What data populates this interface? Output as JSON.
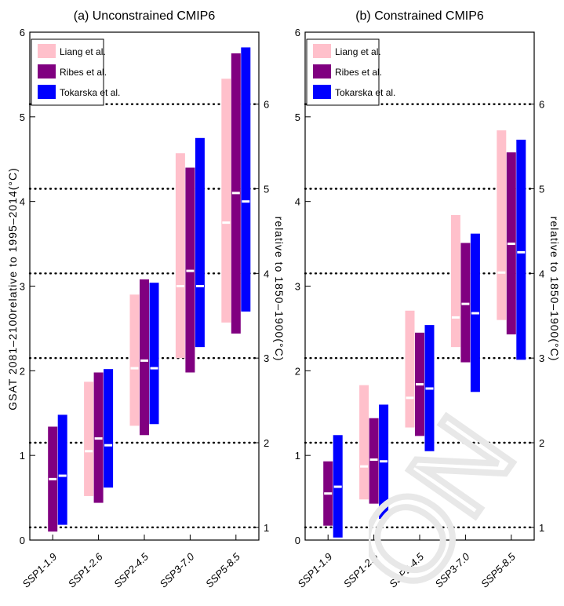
{
  "figure": {
    "ylabel_left": "GSAT 2081–2100relative to 1995–2014(°C)",
    "ylabel_right": "relative to 1850–1900(°C)",
    "watermark_text": "ON"
  },
  "chart_data": [
    {
      "type": "bar",
      "subtype": "range-bar",
      "title": "(a) Unconstrained CMIP6",
      "categories": [
        "SSP1-1.9",
        "SSP1-2.6",
        "SSP2-4.5",
        "SSP3-7.0",
        "SSP5-8.5"
      ],
      "ylim": [
        0,
        6
      ],
      "yticks": [
        0,
        1,
        2,
        3,
        4,
        5,
        6
      ],
      "secondary_axis": {
        "offset": 0.85,
        "ticks": [
          1,
          2,
          3,
          4,
          5,
          6
        ]
      },
      "grid": "dotted lines at secondary axis ticks",
      "legend": "top-left",
      "series": [
        {
          "name": "Liang et al.",
          "color": "#ffc0cb",
          "low": [
            null,
            0.52,
            1.35,
            2.15,
            2.57
          ],
          "high": [
            null,
            1.87,
            2.9,
            4.57,
            5.45
          ],
          "median": [
            null,
            1.05,
            2.03,
            3.0,
            3.75
          ]
        },
        {
          "name": "Ribes et al.",
          "color": "#800080",
          "low": [
            0.1,
            0.44,
            1.24,
            1.98,
            2.44
          ],
          "high": [
            1.34,
            1.98,
            3.08,
            4.4,
            5.75
          ],
          "median": [
            0.72,
            1.2,
            2.12,
            3.18,
            4.1
          ]
        },
        {
          "name": "Tokarska et al.",
          "color": "#0000ff",
          "low": [
            0.18,
            0.62,
            1.37,
            2.28,
            2.7
          ],
          "high": [
            1.48,
            2.02,
            3.04,
            4.75,
            5.82
          ],
          "median": [
            0.76,
            1.12,
            2.03,
            3.0,
            4.0
          ]
        }
      ]
    },
    {
      "type": "bar",
      "subtype": "range-bar",
      "title": "(b) Constrained CMIP6",
      "categories": [
        "SSP1-1.9",
        "SSP1-2.6",
        "SSP2-4.5",
        "SSP3-7.0",
        "SSP5-8.5"
      ],
      "ylim": [
        0,
        6
      ],
      "yticks": [
        0,
        1,
        2,
        3,
        4,
        5,
        6
      ],
      "secondary_axis": {
        "offset": 0.85,
        "ticks": [
          1,
          2,
          3,
          4,
          5,
          6
        ]
      },
      "grid": "dotted lines at secondary axis ticks",
      "legend": "top-left",
      "series": [
        {
          "name": "Liang et al.",
          "color": "#ffc0cb",
          "low": [
            null,
            0.48,
            1.33,
            2.28,
            2.6
          ],
          "high": [
            null,
            1.83,
            2.71,
            3.84,
            4.84
          ],
          "median": [
            null,
            0.87,
            1.68,
            2.63,
            3.16
          ]
        },
        {
          "name": "Ribes et al.",
          "color": "#800080",
          "low": [
            0.17,
            0.43,
            1.23,
            2.1,
            2.43
          ],
          "high": [
            0.93,
            1.44,
            2.45,
            3.51,
            4.58
          ],
          "median": [
            0.55,
            0.95,
            1.84,
            2.79,
            3.5
          ]
        },
        {
          "name": "Tokarska et al.",
          "color": "#0000ff",
          "low": [
            0.03,
            0.25,
            1.05,
            1.75,
            2.13
          ],
          "high": [
            1.24,
            1.6,
            2.54,
            3.62,
            4.73
          ],
          "median": [
            0.63,
            0.93,
            1.79,
            2.68,
            3.4
          ]
        }
      ]
    }
  ]
}
